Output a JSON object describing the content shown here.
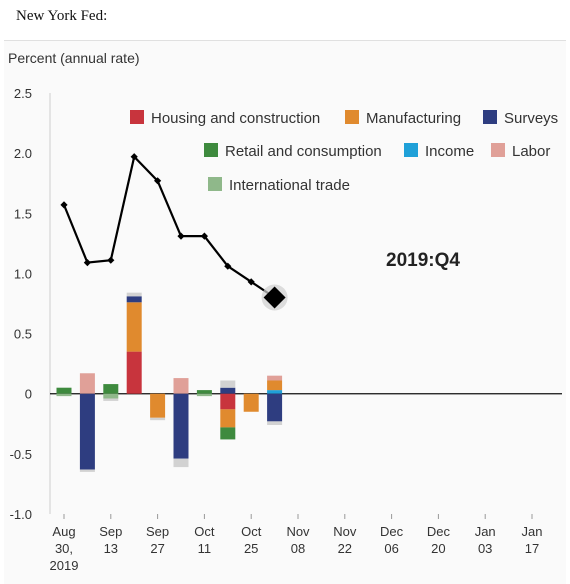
{
  "page": {
    "heading": "New York Fed:"
  },
  "chart_data": {
    "type": "bar",
    "title": "",
    "ylabel": "Percent (annual rate)",
    "ylim": [
      -1.0,
      2.5
    ],
    "yticks": [
      "2.5",
      "2.0",
      "1.5",
      "1.0",
      "0.5",
      "0",
      "-0.5",
      "-1.0"
    ],
    "ytick_values": [
      2.5,
      2.0,
      1.5,
      1.0,
      0.5,
      0,
      -0.5,
      -1.0
    ],
    "xticks": [
      [
        "Aug",
        "30,",
        "2019"
      ],
      [
        "Sep",
        "13"
      ],
      [
        "Sep",
        "27"
      ],
      [
        "Oct",
        "11"
      ],
      [
        "Oct",
        "25"
      ],
      [
        "Nov",
        "08"
      ],
      [
        "Nov",
        "22"
      ],
      [
        "Dec",
        "06"
      ],
      [
        "Dec",
        "20"
      ],
      [
        "Jan",
        "03"
      ],
      [
        "Jan",
        "17"
      ]
    ],
    "annotation": "2019:Q4",
    "colors": {
      "Housing and construction": "#c8343d",
      "Manufacturing": "#e08a2e",
      "Surveys": "#2e3d80",
      "Retail and consumption": "#3e8a3e",
      "Income": "#1fa0d8",
      "Labor": "#e0a098",
      "International trade": "#8fb88a",
      "Other": "#d2d2d2",
      "Nowcast": "#000000"
    },
    "legend": [
      [
        "Housing and construction",
        "Manufacturing",
        "Surveys"
      ],
      [
        "Retail and consumption",
        "Income",
        "Labor"
      ],
      [
        "International trade"
      ]
    ],
    "nowcast": {
      "name": "Nowcast",
      "weeks": [
        0,
        1,
        2,
        3,
        4,
        5,
        6,
        7,
        8,
        9
      ],
      "values": [
        1.57,
        1.09,
        1.11,
        1.97,
        1.77,
        1.31,
        1.31,
        1.06,
        0.93,
        0.8
      ]
    },
    "contributions": [
      {
        "week": 0,
        "parts": [
          [
            "Retail and consumption",
            0.05
          ],
          [
            "International trade",
            -0.02
          ]
        ]
      },
      {
        "week": 1,
        "parts": [
          [
            "Labor",
            0.17
          ],
          [
            "Surveys",
            -0.63
          ],
          [
            "Other",
            -0.02
          ]
        ]
      },
      {
        "week": 2,
        "parts": [
          [
            "Retail and consumption",
            0.08
          ],
          [
            "International trade",
            -0.04
          ],
          [
            "Other",
            -0.02
          ]
        ]
      },
      {
        "week": 3,
        "parts": [
          [
            "Housing and construction",
            0.35
          ],
          [
            "Manufacturing",
            0.41
          ],
          [
            "Surveys",
            0.05
          ],
          [
            "Other",
            0.03
          ]
        ]
      },
      {
        "week": 4,
        "parts": [
          [
            "Manufacturing",
            -0.2
          ],
          [
            "Other",
            -0.02
          ]
        ]
      },
      {
        "week": 5,
        "parts": [
          [
            "Labor",
            0.13
          ],
          [
            "Surveys",
            -0.54
          ],
          [
            "Other",
            -0.07
          ]
        ]
      },
      {
        "week": 6,
        "parts": [
          [
            "Retail and consumption",
            0.03
          ],
          [
            "International trade",
            -0.02
          ]
        ]
      },
      {
        "week": 7,
        "parts": [
          [
            "Surveys",
            0.05
          ],
          [
            "Other",
            0.06
          ],
          [
            "Housing and construction",
            -0.13
          ],
          [
            "Manufacturing",
            -0.15
          ],
          [
            "Retail and consumption",
            -0.1
          ]
        ]
      },
      {
        "week": 8,
        "parts": [
          [
            "Manufacturing",
            -0.15
          ]
        ]
      },
      {
        "week": 9,
        "parts": [
          [
            "Income",
            0.03
          ],
          [
            "Manufacturing",
            0.08
          ],
          [
            "Labor",
            0.04
          ],
          [
            "Surveys",
            -0.23
          ],
          [
            "Other",
            -0.03
          ]
        ]
      }
    ]
  }
}
